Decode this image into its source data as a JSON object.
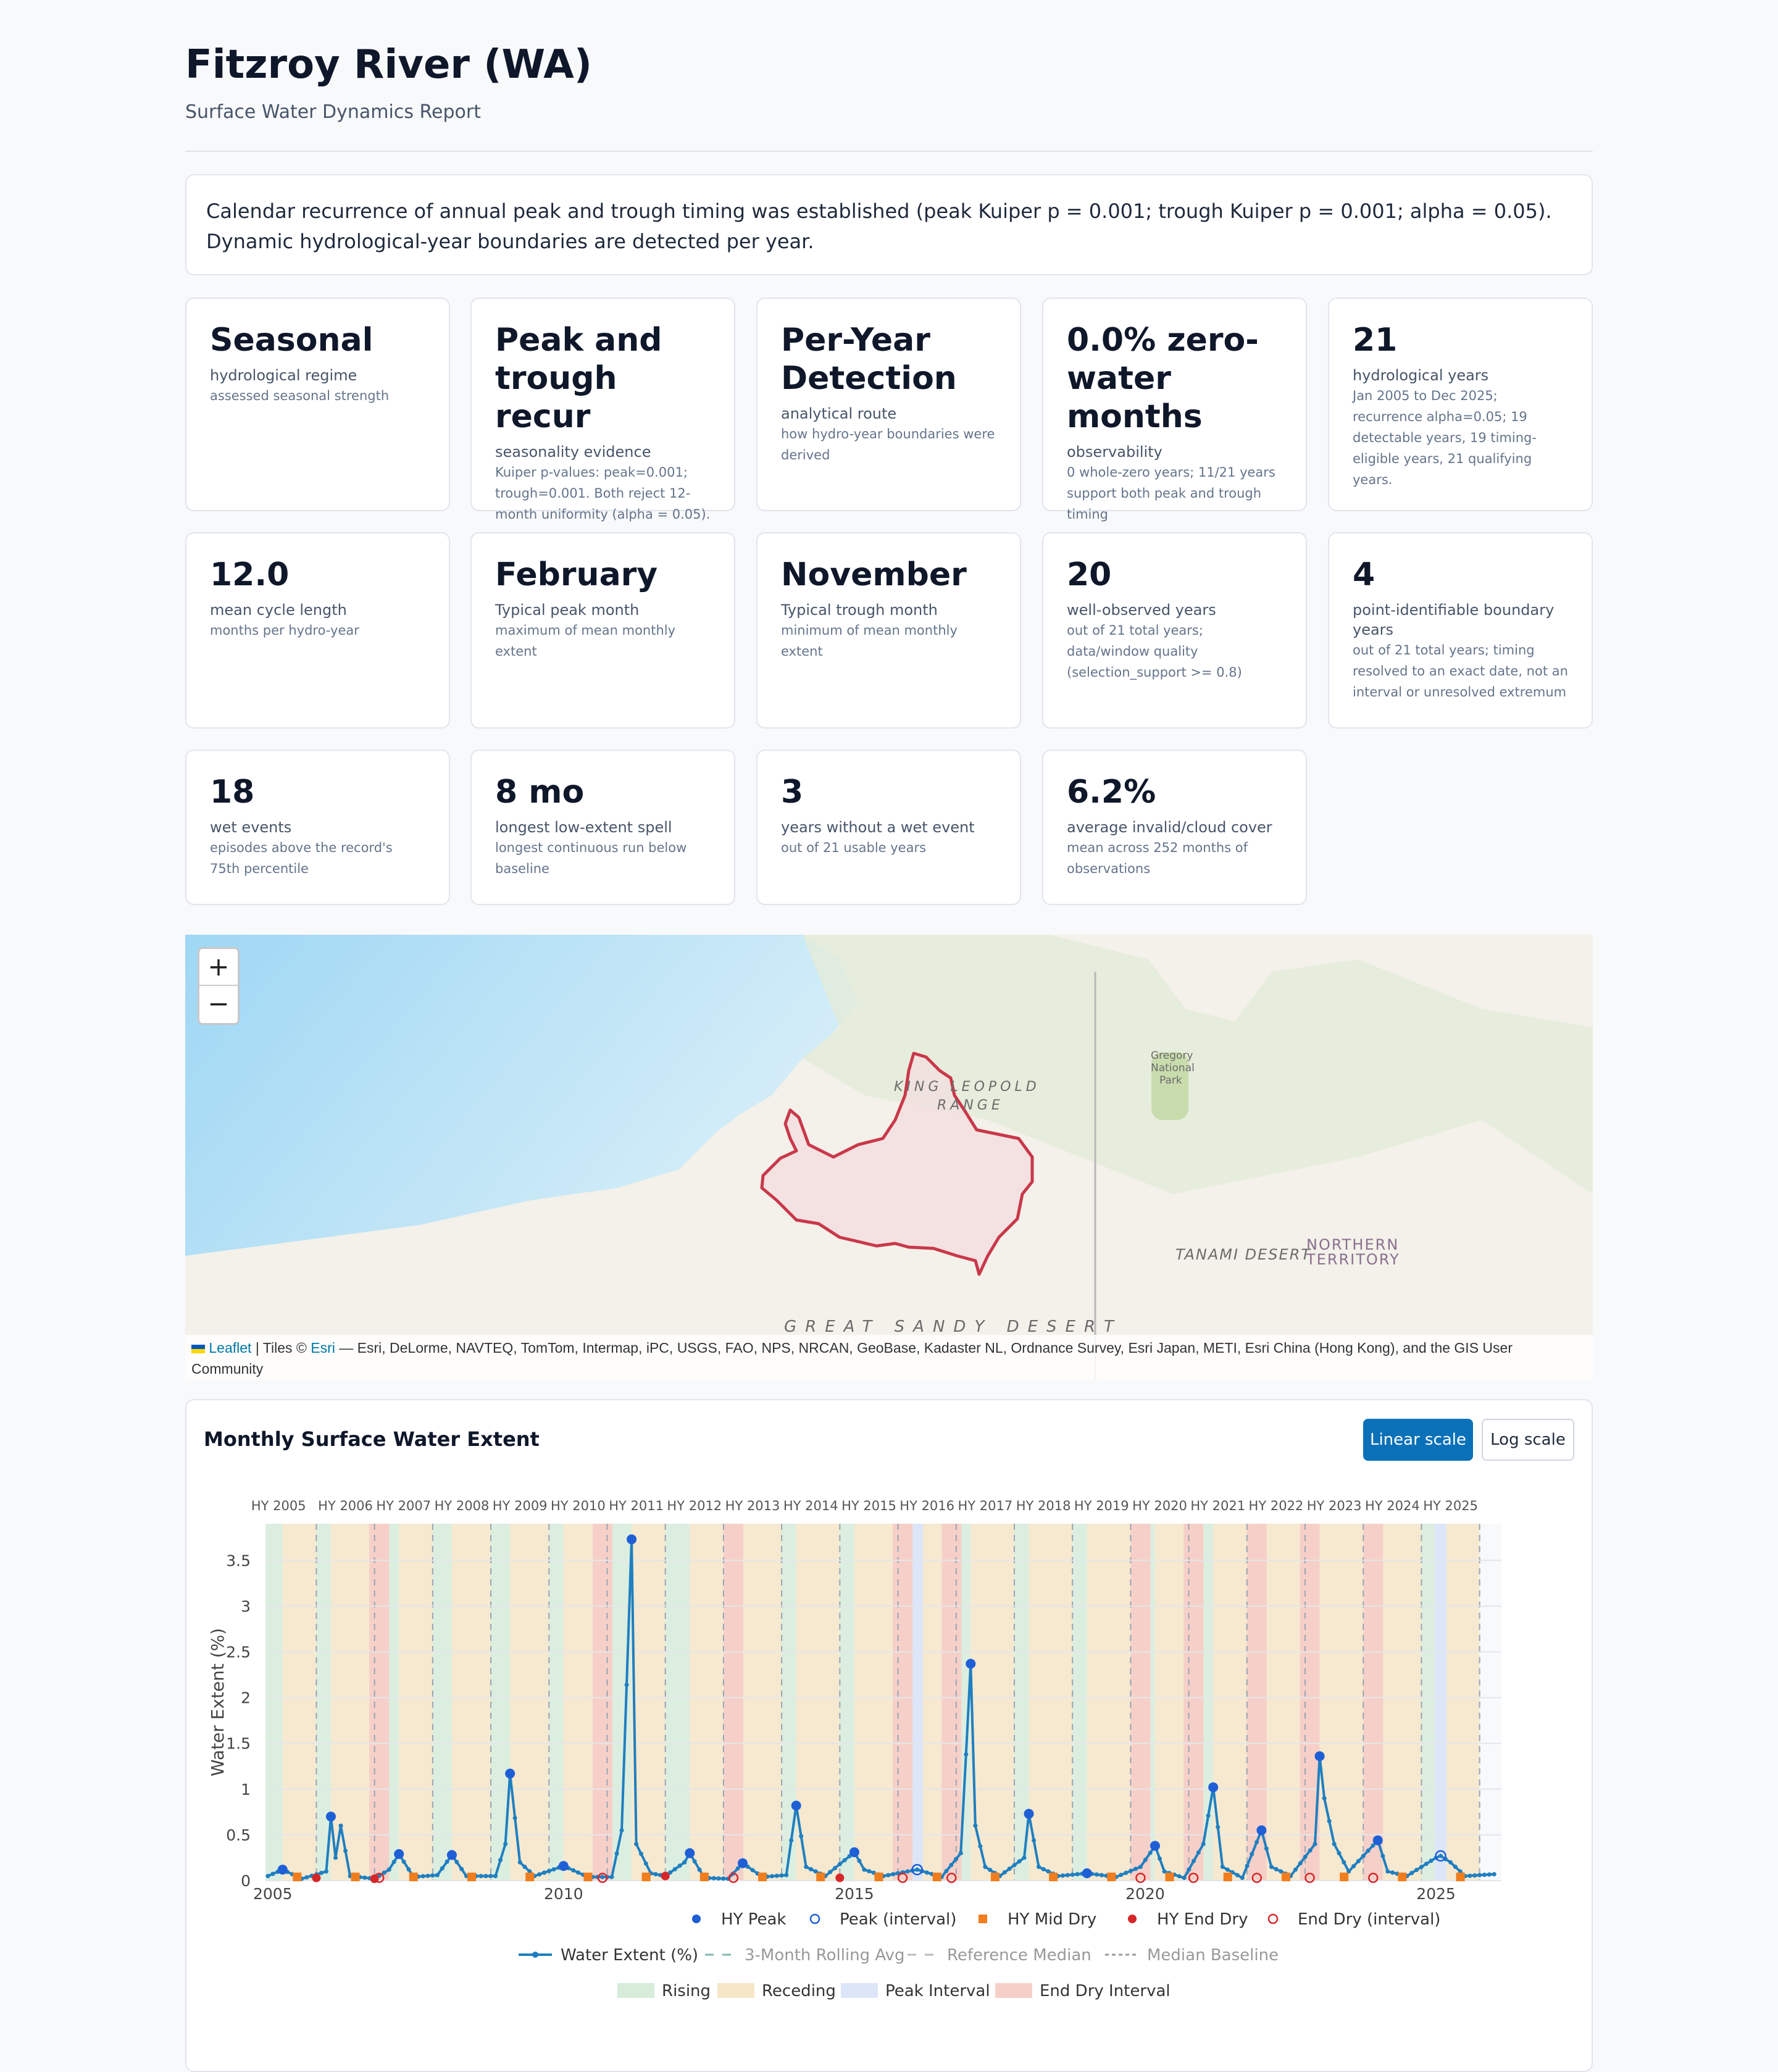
{
  "header": {
    "title": "Fitzroy River (WA)",
    "subtitle": "Surface Water Dynamics Report"
  },
  "summary": "Calendar recurrence of annual peak and trough timing was established (peak Kuiper p = 0.001; trough Kuiper p = 0.001; alpha = 0.05). Dynamic hydrological-year boundaries are detected per year.",
  "stats": [
    {
      "value": "Seasonal",
      "label": "hydrological regime",
      "detail": "assessed seasonal strength"
    },
    {
      "value": "Peak and trough recur",
      "label": "seasonality evidence",
      "detail": "Kuiper p-values: peak=0.001; trough=0.001. Both reject 12-month uniformity (alpha = 0.05)."
    },
    {
      "value": "Per-Year Detection",
      "label": "analytical route",
      "detail": "how hydro-year boundaries were derived"
    },
    {
      "value": "0.0% zero-water months",
      "label": "observability",
      "detail": "0 whole-zero years; 11/21 years support both peak and trough timing"
    },
    {
      "value": "21",
      "label": "hydrological years",
      "detail": "Jan 2005 to Dec 2025; recurrence alpha=0.05; 19 detectable years, 19 timing-eligible years, 21 qualifying years."
    },
    {
      "value": "12.0",
      "label": "mean cycle length",
      "detail": "months per hydro-year"
    },
    {
      "value": "February",
      "label": "Typical peak month",
      "detail": "maximum of mean monthly extent"
    },
    {
      "value": "November",
      "label": "Typical trough month",
      "detail": "minimum of mean monthly extent"
    },
    {
      "value": "20",
      "label": "well-observed years",
      "detail": "out of 21 total years; data/window quality (selection_support >= 0.8)"
    },
    {
      "value": "4",
      "label": "point-identifiable boundary years",
      "detail": "out of 21 total years; timing resolved to an exact date, not an interval or unresolved extremum"
    },
    {
      "value": "18",
      "label": "wet events",
      "detail": "episodes above the record's 75th percentile"
    },
    {
      "value": "8 mo",
      "label": "longest low-extent spell",
      "detail": "longest continuous run below baseline"
    },
    {
      "value": "3",
      "label": "years without a wet event",
      "detail": "out of 21 usable years"
    },
    {
      "value": "6.2%",
      "label": "average invalid/cloud cover",
      "detail": "mean across 252 months of observations"
    }
  ],
  "map": {
    "zoom_in": "+",
    "zoom_out": "−",
    "labels": {
      "king_leopold": "KING LEOPOLD",
      "range": "RANGE",
      "gregory_1": "Gregory",
      "gregory_2": "National",
      "gregory_3": "Park",
      "tanami": "TANAMI DESERT",
      "nt_1": "NORTHERN",
      "nt_2": "TERRITORY",
      "great_sandy": "GREAT SANDY DESERT"
    },
    "attribution": {
      "leaflet": "Leaflet",
      "sep": " | Tiles © ",
      "esri": "Esri",
      "rest": " — Esri, DeLorme, NAVTEQ, TomTom, Intermap, iPC, USGS, FAO, NPS, NRCAN, GeoBase, Kadaster NL, Ordnance Survey, Esri Japan, METI, Esri China (Hong Kong), and the GIS User Community"
    },
    "colors": {
      "ocean": "#b3e0f5",
      "land": "#f3f1ea",
      "catchment_fill": "#f2dede",
      "catchment_stroke": "#c9384a"
    }
  },
  "chart_panel": {
    "title": "Monthly Surface Water Extent",
    "linear_label": "Linear scale",
    "log_label": "Log scale"
  },
  "chart_data": {
    "type": "line",
    "title": "",
    "xlabel": "",
    "ylabel": "Water Extent (%)",
    "ylim": [
      0,
      3.9
    ],
    "xlim": [
      2004.875,
      2026.125
    ],
    "yticks": [
      0,
      0.5,
      1,
      1.5,
      2,
      2.5,
      3,
      3.5
    ],
    "ytick_labels": [
      "0",
      "0.5",
      "1",
      "1.5",
      "2",
      "2.5",
      "3",
      "3.5"
    ],
    "xticks": [
      2005,
      2010,
      2015,
      2020,
      2025
    ],
    "xtick_labels": [
      "2005",
      "2010",
      "2015",
      "2020",
      "2025"
    ],
    "hy_labels": [
      "HY 2005",
      "HY 2006",
      "HY 2007",
      "HY 2008",
      "HY 2009",
      "HY 2010",
      "HY 2011",
      "HY 2012",
      "HY 2013",
      "HY 2014",
      "HY 2015",
      "HY 2016",
      "HY 2017",
      "HY 2018",
      "HY 2019",
      "HY 2020",
      "HY 2021",
      "HY 2022",
      "HY 2023",
      "HY 2024",
      "HY 2025"
    ],
    "hy_boundaries": [
      2005.75,
      2006.75,
      2007.75,
      2008.75,
      2009.75,
      2010.75,
      2011.75,
      2012.75,
      2013.75,
      2014.75,
      2015.75,
      2016.75,
      2017.75,
      2018.75,
      2019.75,
      2020.75,
      2021.75,
      2022.75,
      2023.75,
      2024.75,
      2025.75
    ],
    "peaks": [
      {
        "x": 2005.17,
        "y": 0.12
      },
      {
        "x": 2006.0,
        "y": 0.7
      },
      {
        "x": 2007.17,
        "y": 0.29
      },
      {
        "x": 2008.08,
        "y": 0.28
      },
      {
        "x": 2009.08,
        "y": 1.17
      },
      {
        "x": 2010.0,
        "y": 0.16
      },
      {
        "x": 2011.17,
        "y": 3.73
      },
      {
        "x": 2012.17,
        "y": 0.3
      },
      {
        "x": 2013.08,
        "y": 0.19
      },
      {
        "x": 2014.0,
        "y": 0.82
      },
      {
        "x": 2015.0,
        "y": 0.31
      },
      {
        "x": 2017.0,
        "y": 2.37
      },
      {
        "x": 2018.0,
        "y": 0.73
      },
      {
        "x": 2019.0,
        "y": 0.08
      },
      {
        "x": 2020.17,
        "y": 0.38
      },
      {
        "x": 2021.17,
        "y": 1.02
      },
      {
        "x": 2022.0,
        "y": 0.55
      },
      {
        "x": 2023.0,
        "y": 1.36
      },
      {
        "x": 2024.0,
        "y": 0.44
      }
    ],
    "peak_intervals": [
      {
        "x": 2016.08,
        "y": 0.12
      },
      {
        "x": 2025.08,
        "y": 0.27
      }
    ],
    "mid_dry": [
      2005.42,
      2006.42,
      2007.42,
      2008.42,
      2009.42,
      2010.42,
      2011.42,
      2012.42,
      2013.42,
      2014.42,
      2015.42,
      2016.42,
      2017.42,
      2018.42,
      2019.42,
      2020.42,
      2021.42,
      2022.42,
      2023.42,
      2024.42,
      2025.42
    ],
    "end_dry": [
      {
        "x": 2005.75,
        "y": 0.03
      },
      {
        "x": 2006.75,
        "y": 0.02
      },
      {
        "x": 2011.75,
        "y": 0.05
      },
      {
        "x": 2014.75,
        "y": 0.03
      }
    ],
    "end_dry_intervals": [
      2006.83,
      2010.67,
      2012.92,
      2015.83,
      2016.67,
      2019.92,
      2020.83,
      2021.92,
      2022.83,
      2023.92
    ],
    "series": [
      {
        "name": "Water Extent (%)",
        "anchors": [
          [
            2004.917,
            0.05
          ],
          [
            2005.17,
            0.12
          ],
          [
            2005.5,
            0.02
          ],
          [
            2005.92,
            0.1
          ],
          [
            2006.0,
            0.7
          ],
          [
            2006.08,
            0.25
          ],
          [
            2006.17,
            0.6
          ],
          [
            2006.33,
            0.05
          ],
          [
            2006.75,
            0.02
          ],
          [
            2007.0,
            0.12
          ],
          [
            2007.17,
            0.29
          ],
          [
            2007.42,
            0.04
          ],
          [
            2007.83,
            0.06
          ],
          [
            2008.08,
            0.28
          ],
          [
            2008.33,
            0.05
          ],
          [
            2008.83,
            0.05
          ],
          [
            2009.0,
            0.4
          ],
          [
            2009.08,
            1.17
          ],
          [
            2009.25,
            0.2
          ],
          [
            2009.5,
            0.05
          ],
          [
            2010.0,
            0.16
          ],
          [
            2010.42,
            0.04
          ],
          [
            2010.83,
            0.04
          ],
          [
            2011.0,
            0.55
          ],
          [
            2011.17,
            3.73
          ],
          [
            2011.25,
            0.4
          ],
          [
            2011.5,
            0.08
          ],
          [
            2011.75,
            0.05
          ],
          [
            2012.08,
            0.2
          ],
          [
            2012.17,
            0.3
          ],
          [
            2012.42,
            0.03
          ],
          [
            2012.83,
            0.02
          ],
          [
            2013.08,
            0.19
          ],
          [
            2013.42,
            0.04
          ],
          [
            2013.83,
            0.06
          ],
          [
            2014.0,
            0.82
          ],
          [
            2014.17,
            0.15
          ],
          [
            2014.5,
            0.05
          ],
          [
            2015.0,
            0.31
          ],
          [
            2015.17,
            0.12
          ],
          [
            2015.5,
            0.05
          ],
          [
            2016.08,
            0.12
          ],
          [
            2016.5,
            0.04
          ],
          [
            2016.83,
            0.3
          ],
          [
            2016.92,
            1.38
          ],
          [
            2017.0,
            2.37
          ],
          [
            2017.08,
            0.6
          ],
          [
            2017.25,
            0.15
          ],
          [
            2017.5,
            0.05
          ],
          [
            2017.92,
            0.25
          ],
          [
            2018.0,
            0.73
          ],
          [
            2018.17,
            0.15
          ],
          [
            2018.5,
            0.05
          ],
          [
            2019.0,
            0.08
          ],
          [
            2019.5,
            0.04
          ],
          [
            2019.92,
            0.15
          ],
          [
            2020.17,
            0.38
          ],
          [
            2020.33,
            0.1
          ],
          [
            2020.67,
            0.03
          ],
          [
            2021.0,
            0.4
          ],
          [
            2021.17,
            1.02
          ],
          [
            2021.33,
            0.15
          ],
          [
            2021.67,
            0.03
          ],
          [
            2022.0,
            0.55
          ],
          [
            2022.17,
            0.15
          ],
          [
            2022.5,
            0.05
          ],
          [
            2022.92,
            0.4
          ],
          [
            2023.0,
            1.36
          ],
          [
            2023.08,
            0.9
          ],
          [
            2023.25,
            0.4
          ],
          [
            2023.5,
            0.1
          ],
          [
            2024.0,
            0.44
          ],
          [
            2024.17,
            0.1
          ],
          [
            2024.5,
            0.05
          ],
          [
            2025.0,
            0.25
          ],
          [
            2025.08,
            0.27
          ],
          [
            2025.25,
            0.2
          ],
          [
            2025.5,
            0.05
          ],
          [
            2026.0,
            0.07
          ]
        ]
      }
    ],
    "legend": [
      [
        "HY Peak",
        "Peak (interval)",
        "HY Mid Dry",
        "HY End Dry",
        "End Dry (interval)"
      ],
      [
        "Water Extent (%)",
        "3-Month Rolling Avg",
        "Reference Median",
        "Median Baseline"
      ],
      [
        "Rising",
        "Receding",
        "Peak Interval",
        "End Dry Interval"
      ]
    ],
    "colors": {
      "line": "#1f7fc0",
      "peak": "#1f5fd6",
      "mid_dry": "#f07d1e",
      "end_dry": "#d62728",
      "rising": "#d7ecd9",
      "receding": "#f6e6c8",
      "peak_interval": "#dde6f8",
      "end_dry_interval": "#f6d0c8"
    }
  }
}
